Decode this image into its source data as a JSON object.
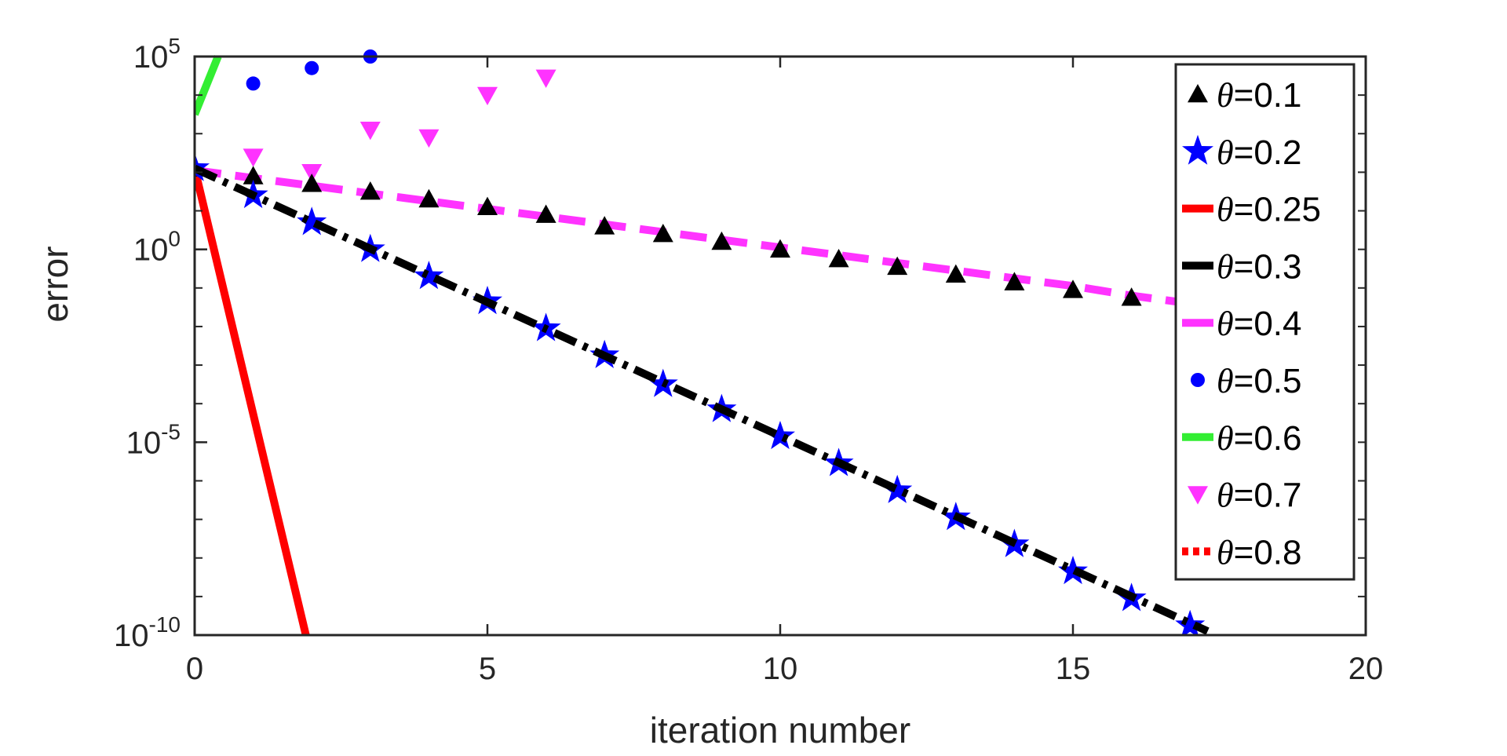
{
  "chart_data": {
    "type": "line",
    "xlabel": "iteration number",
    "ylabel": "error",
    "xlim": [
      0,
      20
    ],
    "ylim_log10": [
      -10,
      5
    ],
    "yscale": "log",
    "grid": false,
    "legend_position": "top-right",
    "x_ticks": [
      0,
      5,
      10,
      15,
      20
    ],
    "x_tick_labels": [
      "0",
      "5",
      "10",
      "15",
      "20"
    ],
    "y_ticks_log10": [
      -10,
      -5,
      0,
      5
    ],
    "y_tick_labels": [
      {
        "base": "10",
        "exp": "-10"
      },
      {
        "base": "10",
        "exp": "-5"
      },
      {
        "base": "10",
        "exp": "0"
      },
      {
        "base": "10",
        "exp": "5"
      }
    ],
    "series": [
      {
        "name": "θ=0.1",
        "theta": "θ",
        "value": "=0.1",
        "color": "#000000",
        "style": "markers",
        "marker": "triangle-up",
        "x": [
          0,
          1,
          2,
          3,
          4,
          5,
          6,
          7,
          8,
          9,
          10,
          11,
          12,
          13,
          14,
          15,
          16,
          17
        ],
        "log10_y": [
          2.1,
          1.9,
          1.7,
          1.5,
          1.3,
          1.1,
          0.9,
          0.6,
          0.4,
          0.2,
          0.0,
          -0.25,
          -0.45,
          -0.65,
          -0.85,
          -1.05,
          -1.25,
          -1.7
        ]
      },
      {
        "name": "θ=0.2",
        "theta": "θ",
        "value": "=0.2",
        "color": "#0000ff",
        "style": "markers",
        "marker": "pentagram",
        "x": [
          0,
          1,
          2,
          3,
          4,
          5,
          6,
          7,
          8,
          9,
          10,
          11,
          12,
          13,
          14,
          15,
          16,
          17
        ],
        "log10_y": [
          2.1,
          1.4,
          0.7,
          0.0,
          -0.7,
          -1.35,
          -2.05,
          -2.75,
          -3.5,
          -4.15,
          -4.85,
          -5.55,
          -6.25,
          -6.95,
          -7.65,
          -8.35,
          -9.05,
          -9.75
        ]
      },
      {
        "name": "θ=0.25",
        "theta": "θ",
        "value": "=0.25",
        "color": "#ff0000",
        "style": "solid",
        "marker": "none",
        "x": [
          0,
          1.9
        ],
        "log10_y": [
          2.1,
          -10
        ]
      },
      {
        "name": "θ=0.3",
        "theta": "θ",
        "value": "=0.3",
        "color": "#000000",
        "style": "dash-dot",
        "marker": "none",
        "x": [
          0,
          17.3
        ],
        "log10_y": [
          2.1,
          -9.9
        ]
      },
      {
        "name": "θ=0.4",
        "theta": "θ",
        "value": "=0.4",
        "color": "#ff33ff",
        "style": "dashed",
        "marker": "none",
        "x": [
          0,
          1,
          2,
          3,
          4,
          5,
          6,
          7,
          8,
          9,
          10,
          11,
          12,
          13,
          14,
          15,
          16,
          17
        ],
        "log10_y": [
          2.05,
          1.85,
          1.65,
          1.45,
          1.25,
          1.05,
          0.85,
          0.65,
          0.45,
          0.25,
          0.05,
          -0.15,
          -0.35,
          -0.55,
          -0.75,
          -0.95,
          -1.2,
          -1.4
        ]
      },
      {
        "name": "θ=0.5",
        "theta": "θ",
        "value": "=0.5",
        "color": "#0000ff",
        "style": "markers",
        "marker": "dot",
        "x": [
          1,
          2,
          3
        ],
        "log10_y": [
          4.3,
          4.7,
          5.0
        ]
      },
      {
        "name": "θ=0.6",
        "theta": "θ",
        "value": "=0.6",
        "color": "#33ee33",
        "style": "solid",
        "marker": "none",
        "x": [
          0,
          0.4
        ],
        "log10_y": [
          3.5,
          5.0
        ]
      },
      {
        "name": "θ=0.7",
        "theta": "θ",
        "value": "=0.7",
        "color": "#ff33ff",
        "style": "markers",
        "marker": "triangle-down",
        "x": [
          1,
          2,
          3,
          4,
          5,
          6
        ],
        "log10_y": [
          2.4,
          2.0,
          3.1,
          2.9,
          4.0,
          4.45
        ]
      },
      {
        "name": "θ=0.8",
        "theta": "θ",
        "value": "=0.8",
        "color": "#ff0000",
        "style": "dotted",
        "marker": "none",
        "x": [],
        "log10_y": []
      }
    ]
  }
}
